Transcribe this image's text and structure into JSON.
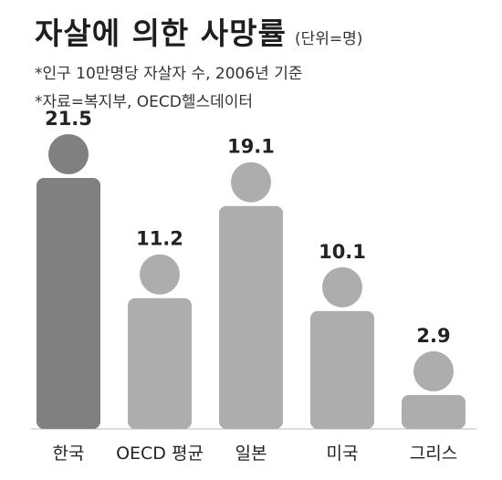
{
  "header": {
    "title": "자살에 의한 사망률",
    "unit": "(단위=명)",
    "note_basis": "*인구 10만명당 자살자 수, 2006년 기준",
    "note_source": "*자료=복지부, OECD헬스데이터"
  },
  "colors": {
    "highlight": "#808080",
    "bar": "#adadad",
    "baseline": "#bbbbbb"
  },
  "chart_data": {
    "type": "bar",
    "categories": [
      "한국",
      "OECD 평균",
      "일본",
      "미국",
      "그리스"
    ],
    "values": [
      21.5,
      11.2,
      19.1,
      10.1,
      2.9
    ],
    "value_labels": [
      "21.5",
      "11.2",
      "19.1",
      "10.1",
      "2.9"
    ],
    "title": "자살에 의한 사망률",
    "unit": "(단위=명)",
    "highlight_category": "한국",
    "ylim": [
      0,
      21.5
    ],
    "grid": false,
    "legend": "none"
  }
}
